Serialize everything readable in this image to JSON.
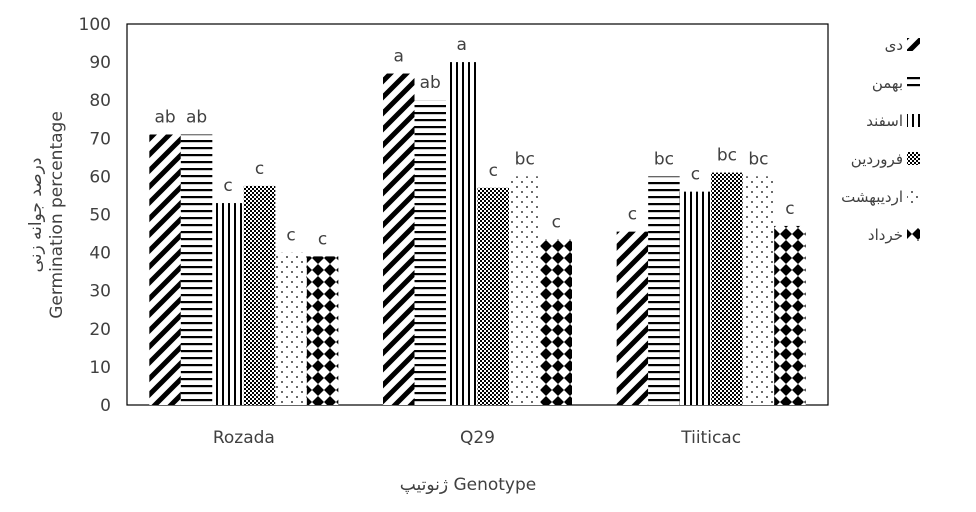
{
  "chart_data": {
    "type": "bar",
    "categories": [
      "Rozada",
      "Q29",
      "Tiiticac"
    ],
    "series": [
      {
        "name": "دی",
        "values": [
          71,
          87,
          45.5
        ],
        "letters": [
          "ab",
          "a",
          "c"
        ]
      },
      {
        "name": "بهمن",
        "values": [
          71,
          80,
          60
        ],
        "letters": [
          "ab",
          "ab",
          "bc"
        ]
      },
      {
        "name": "اسفند",
        "values": [
          53,
          90,
          56
        ],
        "letters": [
          "c",
          "a",
          "c"
        ]
      },
      {
        "name": "فروردین",
        "values": [
          57.5,
          57,
          61
        ],
        "letters": [
          "c",
          "c",
          "bc"
        ]
      },
      {
        "name": "اردیبهشت",
        "values": [
          40,
          60,
          60
        ],
        "letters": [
          "c",
          "bc",
          "bc"
        ]
      },
      {
        "name": "خرداد",
        "values": [
          39,
          43.5,
          47
        ],
        "letters": [
          "c",
          "c",
          "c"
        ]
      }
    ],
    "ylim": [
      0,
      100
    ],
    "yticks": [
      0,
      10,
      20,
      30,
      40,
      50,
      60,
      70,
      80,
      90,
      100
    ],
    "ylabel_fa": "درصد جوانه زنی",
    "ylabel_en": "Germination percentage",
    "xlabel": "ژنوتیپ Genotype",
    "legend_position": "right",
    "grid": false
  }
}
